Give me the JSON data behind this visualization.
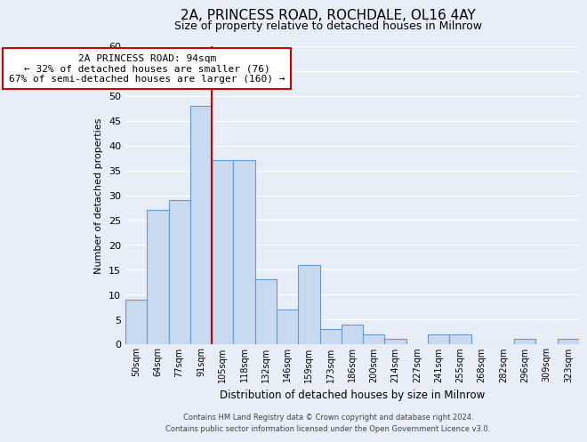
{
  "title": "2A, PRINCESS ROAD, ROCHDALE, OL16 4AY",
  "subtitle": "Size of property relative to detached houses in Milnrow",
  "xlabel": "Distribution of detached houses by size in Milnrow",
  "ylabel": "Number of detached properties",
  "bin_labels": [
    "50sqm",
    "64sqm",
    "77sqm",
    "91sqm",
    "105sqm",
    "118sqm",
    "132sqm",
    "146sqm",
    "159sqm",
    "173sqm",
    "186sqm",
    "200sqm",
    "214sqm",
    "227sqm",
    "241sqm",
    "255sqm",
    "268sqm",
    "282sqm",
    "296sqm",
    "309sqm",
    "323sqm"
  ],
  "bar_heights": [
    9,
    27,
    29,
    48,
    37,
    37,
    13,
    7,
    16,
    3,
    4,
    2,
    1,
    0,
    2,
    2,
    0,
    0,
    1,
    0,
    1
  ],
  "bar_color": "#c9d9f0",
  "bar_edge_color": "#6699cc",
  "vline_color": "#cc0000",
  "vline_x_index": 3.5,
  "ylim": [
    0,
    60
  ],
  "yticks": [
    0,
    5,
    10,
    15,
    20,
    25,
    30,
    35,
    40,
    45,
    50,
    55,
    60
  ],
  "annotation_title": "2A PRINCESS ROAD: 94sqm",
  "annotation_line1": "← 32% of detached houses are smaller (76)",
  "annotation_line2": "67% of semi-detached houses are larger (160) →",
  "annotation_box_color": "#ffffff",
  "annotation_box_edge": "#cc0000",
  "footer_line1": "Contains HM Land Registry data © Crown copyright and database right 2024.",
  "footer_line2": "Contains public sector information licensed under the Open Government Licence v3.0.",
  "background_color": "#e8eef8",
  "grid_color": "#ffffff",
  "title_fontsize": 11,
  "subtitle_fontsize": 9
}
